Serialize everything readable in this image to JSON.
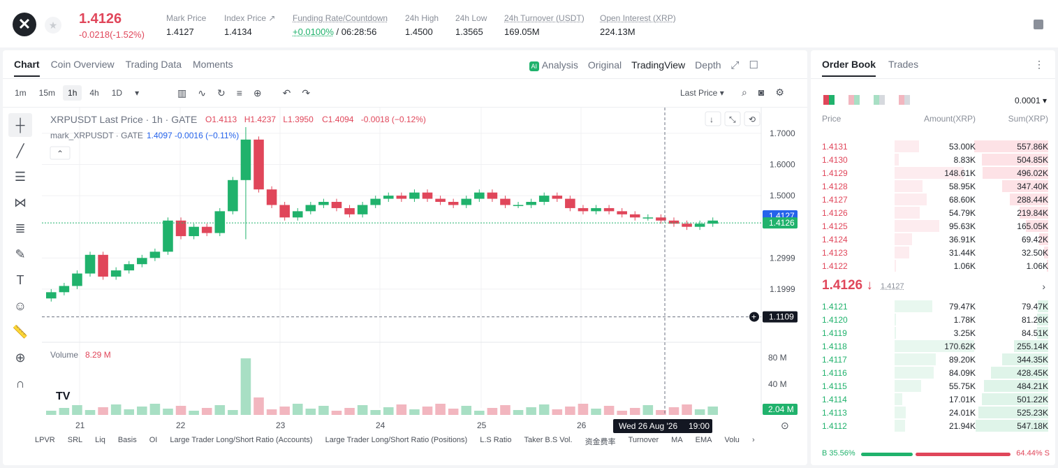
{
  "header": {
    "last_price": "1.4126",
    "change": "-0.0218(-1.52%)",
    "stats": [
      {
        "label": "Mark Price",
        "value": "1.4127"
      },
      {
        "label": "Index Price ↗",
        "value": "1.4134"
      },
      {
        "label": "Funding Rate/Countdown",
        "value_green": "+0.0100%",
        "value": "/ 06:28:56"
      },
      {
        "label": "24h High",
        "value": "1.4500"
      },
      {
        "label": "24h Low",
        "value": "1.3565"
      },
      {
        "label": "24h Turnover (USDT)",
        "value": "169.05M"
      },
      {
        "label": "Open Interest (XRP)",
        "value": "224.13M"
      }
    ]
  },
  "chart_panel": {
    "tabs": [
      "Chart",
      "Coin Overview",
      "Trading Data",
      "Moments"
    ],
    "views": {
      "analysis": "Analysis",
      "original": "Original",
      "tradingview": "TradingView",
      "depth": "Depth"
    },
    "timeframes": [
      "1m",
      "15m",
      "1h",
      "4h",
      "1D"
    ],
    "price_type": "Last Price",
    "legend_main": "XRPUSDT Last Price · 1h · GATE",
    "ohlc": {
      "o": "O1.4113",
      "h": "H1.4237",
      "l": "L1.3950",
      "c": "C1.4094",
      "chg": "-0.0018 (−0.12%)"
    },
    "legend_mark": "mark_XRPUSDT · GATE",
    "mark_values": "1.4097  -0.0016 (−0.11%)",
    "volume_label": "Volume",
    "volume_value": "8.29 M",
    "price_axis": [
      "1.7000",
      "1.6000",
      "1.5000",
      "1.2999",
      "1.1999"
    ],
    "mark_tag": "1.4127",
    "last_tag": "1.4126",
    "crosshair_price": "1.1109",
    "volume_axis": [
      "80 M",
      "40 M"
    ],
    "volume_tag": "2.04 M",
    "date_axis": [
      "21",
      "22",
      "23",
      "24",
      "25",
      "26"
    ],
    "crosshair_date": "Wed 26 Aug '26",
    "crosshair_time": "19:00",
    "bottom_indicators": [
      "LPVR",
      "SRL",
      "Liq",
      "Basis",
      "OI",
      "Large Trader Long/Short Ratio (Accounts)",
      "Large Trader Long/Short Ratio (Positions)",
      "L.S Ratio",
      "Taker B.S Vol.",
      "资金费率",
      "Turnover",
      "MA",
      "EMA",
      "Volu"
    ]
  },
  "chart_data": {
    "type": "bar",
    "title": "XRPUSDT Last Price · 1h · GATE",
    "x_ticks": [
      "21",
      "22",
      "23",
      "24",
      "25",
      "26"
    ],
    "y_ticks": [
      1.1999,
      1.2999,
      1.5,
      1.6,
      1.7
    ],
    "ylim": [
      1.11,
      1.72
    ],
    "close_series": [
      1.19,
      1.21,
      1.25,
      1.31,
      1.24,
      1.26,
      1.28,
      1.3,
      1.32,
      1.42,
      1.37,
      1.4,
      1.38,
      1.45,
      1.55,
      1.68,
      1.52,
      1.47,
      1.43,
      1.45,
      1.47,
      1.48,
      1.46,
      1.44,
      1.47,
      1.49,
      1.5,
      1.49,
      1.51,
      1.49,
      1.48,
      1.47,
      1.49,
      1.51,
      1.49,
      1.47,
      1.47,
      1.48,
      1.5,
      1.49,
      1.46,
      1.45,
      1.46,
      1.45,
      1.44,
      1.43,
      1.43,
      1.42,
      1.41,
      1.4,
      1.41,
      1.42
    ]
  },
  "order_book": {
    "tabs": [
      "Order Book",
      "Trades"
    ],
    "precision": "0.0001",
    "headers": {
      "price": "Price",
      "amount": "Amount(XRP)",
      "sum": "Sum(XRP)"
    },
    "asks": [
      {
        "price": "1.4131",
        "amount": "53.00K",
        "sum": "557.86K",
        "amt_frac": 0.31,
        "sum_frac": 1.0
      },
      {
        "price": "1.4130",
        "amount": "8.83K",
        "sum": "504.85K",
        "amt_frac": 0.05,
        "sum_frac": 0.9
      },
      {
        "price": "1.4129",
        "amount": "148.61K",
        "sum": "496.02K",
        "amt_frac": 0.87,
        "sum_frac": 0.89
      },
      {
        "price": "1.4128",
        "amount": "58.95K",
        "sum": "347.40K",
        "amt_frac": 0.35,
        "sum_frac": 0.62
      },
      {
        "price": "1.4127",
        "amount": "68.60K",
        "sum": "288.44K",
        "amt_frac": 0.4,
        "sum_frac": 0.52
      },
      {
        "price": "1.4126",
        "amount": "54.79K",
        "sum": "219.84K",
        "amt_frac": 0.32,
        "sum_frac": 0.39
      },
      {
        "price": "1.4125",
        "amount": "95.63K",
        "sum": "165.05K",
        "amt_frac": 0.56,
        "sum_frac": 0.3
      },
      {
        "price": "1.4124",
        "amount": "36.91K",
        "sum": "69.42K",
        "amt_frac": 0.22,
        "sum_frac": 0.12
      },
      {
        "price": "1.4123",
        "amount": "31.44K",
        "sum": "32.50K",
        "amt_frac": 0.18,
        "sum_frac": 0.06
      },
      {
        "price": "1.4122",
        "amount": "1.06K",
        "sum": "1.06K",
        "amt_frac": 0.01,
        "sum_frac": 0.01
      }
    ],
    "mid_price": "1.4126 ↓",
    "mid_mark": "1.4127",
    "bids": [
      {
        "price": "1.4121",
        "amount": "79.47K",
        "sum": "79.47K",
        "amt_frac": 0.47,
        "sum_frac": 0.14
      },
      {
        "price": "1.4120",
        "amount": "1.78K",
        "sum": "81.26K",
        "amt_frac": 0.01,
        "sum_frac": 0.15
      },
      {
        "price": "1.4119",
        "amount": "3.25K",
        "sum": "84.51K",
        "amt_frac": 0.02,
        "sum_frac": 0.15
      },
      {
        "price": "1.4118",
        "amount": "170.62K",
        "sum": "255.14K",
        "amt_frac": 1.0,
        "sum_frac": 0.46
      },
      {
        "price": "1.4117",
        "amount": "89.20K",
        "sum": "344.35K",
        "amt_frac": 0.52,
        "sum_frac": 0.62
      },
      {
        "price": "1.4116",
        "amount": "84.09K",
        "sum": "428.45K",
        "amt_frac": 0.49,
        "sum_frac": 0.77
      },
      {
        "price": "1.4115",
        "amount": "55.75K",
        "sum": "484.21K",
        "amt_frac": 0.33,
        "sum_frac": 0.87
      },
      {
        "price": "1.4114",
        "amount": "17.01K",
        "sum": "501.22K",
        "amt_frac": 0.1,
        "sum_frac": 0.9
      },
      {
        "price": "1.4113",
        "amount": "24.01K",
        "sum": "525.23K",
        "amt_frac": 0.14,
        "sum_frac": 0.94
      },
      {
        "price": "1.4112",
        "amount": "21.94K",
        "sum": "547.18K",
        "amt_frac": 0.13,
        "sum_frac": 0.98
      }
    ],
    "buy_ratio": "B 35.56%",
    "sell_ratio": "64.44% S",
    "buy_frac": 0.3556
  },
  "colors": {
    "up": "#20b26c",
    "down": "#e0465a",
    "mark": "#2563eb"
  }
}
